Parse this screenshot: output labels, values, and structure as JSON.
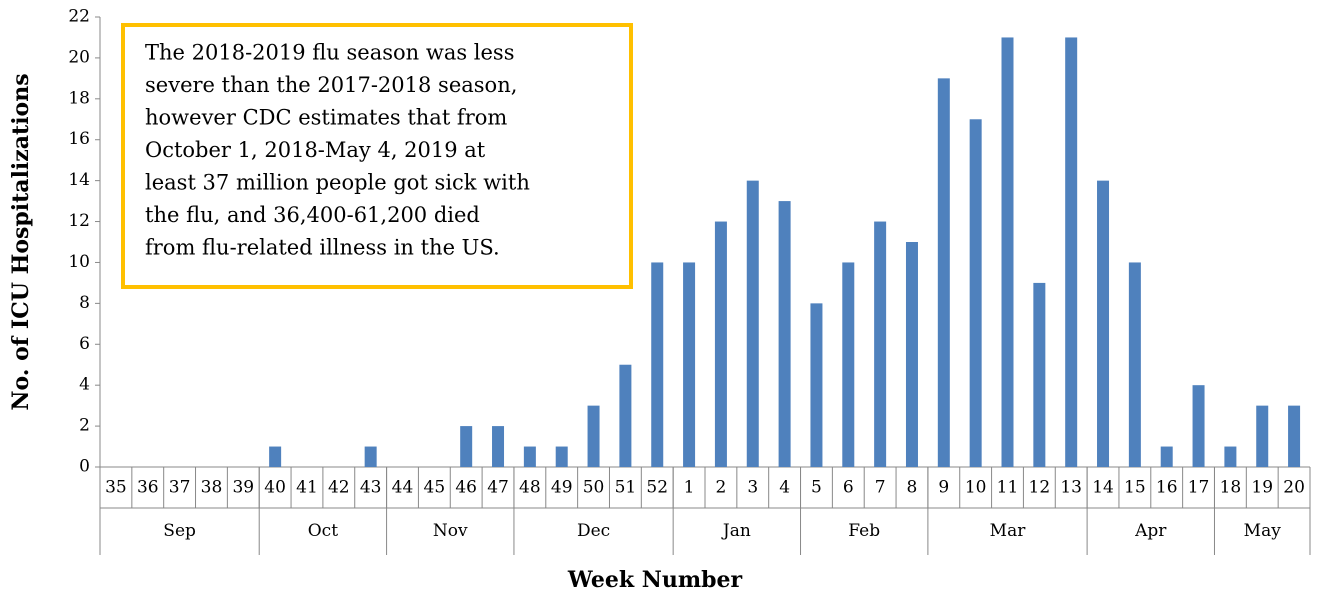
{
  "chart_data": {
    "type": "bar",
    "x_label": "Week Number",
    "y_label": "No. of ICU Hospitalizations",
    "annotation": [
      "The 2018-2019 flu season was less",
      "severe than the 2017-2018 season,",
      "however CDC estimates that from",
      "October 1, 2018-May 4, 2019 at",
      "least 37 million people got sick with",
      "the flu, and 36,400-61,200 died",
      "from flu-related illness in the US."
    ],
    "groups": [
      {
        "name": "Sep",
        "categories": [
          "35",
          "36",
          "37",
          "38",
          "39"
        ]
      },
      {
        "name": "Oct",
        "categories": [
          "40",
          "41",
          "42",
          "43"
        ]
      },
      {
        "name": "Nov",
        "categories": [
          "44",
          "45",
          "46",
          "47"
        ]
      },
      {
        "name": "Dec",
        "categories": [
          "48",
          "49",
          "50",
          "51",
          "52"
        ]
      },
      {
        "name": "Jan",
        "categories": [
          "1",
          "2",
          "3",
          "4"
        ]
      },
      {
        "name": "Feb",
        "categories": [
          "5",
          "6",
          "7",
          "8"
        ]
      },
      {
        "name": "Mar",
        "categories": [
          "9",
          "10",
          "11",
          "12",
          "13"
        ]
      },
      {
        "name": "Apr",
        "categories": [
          "14",
          "15",
          "16",
          "17"
        ]
      },
      {
        "name": "May",
        "categories": [
          "18",
          "19",
          "20"
        ]
      }
    ],
    "values": [
      0,
      0,
      0,
      0,
      0,
      1,
      0,
      0,
      1,
      0,
      0,
      2,
      2,
      1,
      1,
      3,
      5,
      10,
      10,
      12,
      14,
      13,
      8,
      10,
      12,
      11,
      19,
      17,
      21,
      9,
      21,
      14,
      10,
      1,
      4,
      1,
      3,
      3
    ],
    "color": "#4f81bd",
    "annotation_border": "#ffc000",
    "ylim": [
      0,
      22
    ],
    "yticks": [
      0,
      2,
      4,
      6,
      8,
      10,
      12,
      14,
      16,
      18,
      20,
      22
    ],
    "grid": false
  }
}
